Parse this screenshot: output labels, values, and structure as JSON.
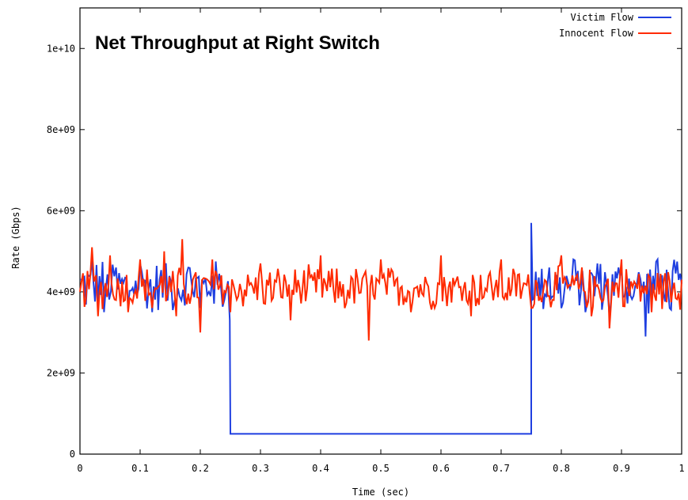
{
  "chart_data": {
    "type": "line",
    "title": "Net Throughput at Right Switch",
    "xlabel": "Time (sec)",
    "ylabel": "Rate (Gbps)",
    "xlim": [
      0,
      1
    ],
    "ylim": [
      0,
      11000000000
    ],
    "x_ticks": [
      "0",
      "0.1",
      "0.2",
      "0.3",
      "0.4",
      "0.5",
      "0.6",
      "0.7",
      "0.8",
      "0.9",
      "1"
    ],
    "y_ticks": [
      "0",
      "2e+09",
      "4e+09",
      "6e+09",
      "8e+09",
      "1e+10"
    ],
    "legend_position": "top-right",
    "grid": false,
    "series": [
      {
        "name": "Victim Flow",
        "color": "#1f3fe0",
        "description": "noisy around 4.2e+09 with spikes; drops to 0.5e+09 between t=0.25 and t=0.75 (spike to 5.7e+09 at t=0.75)",
        "points": [
          [
            0,
            4300000000.0
          ],
          [
            0.02,
            4800000000.0
          ],
          [
            0.04,
            3500000000.0
          ],
          [
            0.06,
            4600000000.0
          ],
          [
            0.08,
            3600000000.0
          ],
          [
            0.1,
            4700000000.0
          ],
          [
            0.12,
            3500000000.0
          ],
          [
            0.14,
            4500000000.0
          ],
          [
            0.16,
            3700000000.0
          ],
          [
            0.18,
            4600000000.0
          ],
          [
            0.2,
            3600000000.0
          ],
          [
            0.22,
            4400000000.0
          ],
          [
            0.24,
            3800000000.0
          ],
          [
            0.249,
            3300000000.0
          ],
          [
            0.25,
            500000000.0
          ],
          [
            0.75,
            500000000.0
          ],
          [
            0.75,
            5700000000.0
          ],
          [
            0.76,
            3900000000.0
          ],
          [
            0.78,
            4600000000.0
          ],
          [
            0.8,
            3600000000.0
          ],
          [
            0.82,
            4800000000.0
          ],
          [
            0.84,
            3500000000.0
          ],
          [
            0.86,
            4700000000.0
          ],
          [
            0.88,
            3400000000.0
          ],
          [
            0.9,
            4600000000.0
          ],
          [
            0.92,
            3900000000.0
          ],
          [
            0.94,
            2900000000.0
          ],
          [
            0.96,
            4800000000.0
          ],
          [
            0.98,
            3600000000.0
          ],
          [
            1.0,
            4200000000.0
          ]
        ]
      },
      {
        "name": "Innocent Flow",
        "color": "#ff2a00",
        "description": "noisy around 4.1e+09 across the whole run, range about 2.8e+09 to 5.3e+09",
        "points": [
          [
            0,
            4000000000.0
          ],
          [
            0.02,
            5100000000.0
          ],
          [
            0.03,
            3400000000.0
          ],
          [
            0.05,
            4900000000.0
          ],
          [
            0.08,
            3500000000.0
          ],
          [
            0.1,
            4800000000.0
          ],
          [
            0.12,
            3600000000.0
          ],
          [
            0.14,
            5000000000.0
          ],
          [
            0.16,
            3400000000.0
          ],
          [
            0.17,
            5300000000.0
          ],
          [
            0.2,
            3000000000.0
          ],
          [
            0.22,
            4800000000.0
          ],
          [
            0.25,
            3500000000.0
          ],
          [
            0.3,
            4700000000.0
          ],
          [
            0.35,
            3300000000.0
          ],
          [
            0.4,
            4900000000.0
          ],
          [
            0.44,
            3600000000.0
          ],
          [
            0.48,
            2800000000.0
          ],
          [
            0.5,
            4800000000.0
          ],
          [
            0.55,
            3500000000.0
          ],
          [
            0.6,
            4900000000.0
          ],
          [
            0.65,
            3400000000.0
          ],
          [
            0.7,
            4800000000.0
          ],
          [
            0.75,
            3600000000.0
          ],
          [
            0.8,
            4900000000.0
          ],
          [
            0.85,
            3400000000.0
          ],
          [
            0.88,
            3100000000.0
          ],
          [
            0.9,
            4800000000.0
          ],
          [
            0.95,
            3500000000.0
          ],
          [
            1.0,
            4300000000.0
          ]
        ]
      }
    ]
  }
}
